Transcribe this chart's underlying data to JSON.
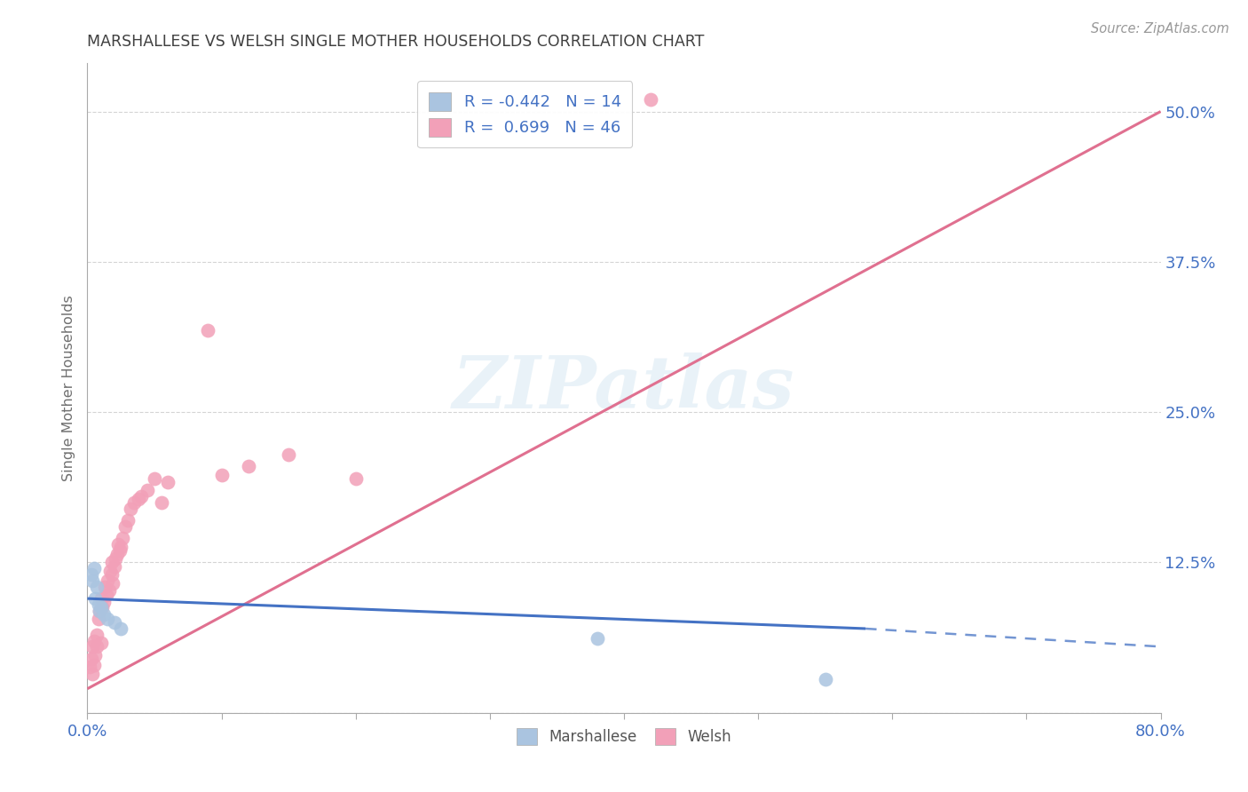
{
  "title": "MARSHALLESE VS WELSH SINGLE MOTHER HOUSEHOLDS CORRELATION CHART",
  "source": "Source: ZipAtlas.com",
  "ylabel": "Single Mother Households",
  "xlim": [
    0.0,
    0.8
  ],
  "ylim": [
    0.0,
    0.54
  ],
  "y_ticks": [
    0.0,
    0.125,
    0.25,
    0.375,
    0.5
  ],
  "y_tick_labels": [
    "",
    "12.5%",
    "25.0%",
    "37.5%",
    "50.0%"
  ],
  "x_ticks": [
    0.0,
    0.1,
    0.2,
    0.3,
    0.4,
    0.5,
    0.6,
    0.7,
    0.8
  ],
  "x_tick_labels": [
    "0.0%",
    "",
    "",
    "",
    "",
    "",
    "",
    "",
    "80.0%"
  ],
  "watermark_text": "ZIPatlas",
  "marshallese_color": "#aac4e0",
  "welsh_color": "#f2a0b8",
  "marshallese_line_color": "#4472c4",
  "welsh_line_color": "#e07090",
  "marshallese_scatter_x": [
    0.003,
    0.004,
    0.005,
    0.006,
    0.007,
    0.008,
    0.009,
    0.01,
    0.012,
    0.015,
    0.02,
    0.025,
    0.38,
    0.55
  ],
  "marshallese_scatter_y": [
    0.115,
    0.11,
    0.12,
    0.095,
    0.105,
    0.09,
    0.085,
    0.088,
    0.082,
    0.078,
    0.075,
    0.07,
    0.062,
    0.028
  ],
  "welsh_scatter_x": [
    0.002,
    0.003,
    0.004,
    0.004,
    0.005,
    0.005,
    0.006,
    0.007,
    0.007,
    0.008,
    0.009,
    0.01,
    0.01,
    0.011,
    0.012,
    0.013,
    0.014,
    0.015,
    0.016,
    0.017,
    0.018,
    0.018,
    0.019,
    0.02,
    0.021,
    0.022,
    0.023,
    0.024,
    0.025,
    0.026,
    0.028,
    0.03,
    0.032,
    0.035,
    0.038,
    0.04,
    0.045,
    0.05,
    0.055,
    0.06,
    0.09,
    0.1,
    0.12,
    0.15,
    0.2,
    0.42
  ],
  "welsh_scatter_y": [
    0.038,
    0.045,
    0.032,
    0.055,
    0.04,
    0.06,
    0.048,
    0.065,
    0.055,
    0.078,
    0.085,
    0.058,
    0.095,
    0.088,
    0.092,
    0.105,
    0.098,
    0.11,
    0.102,
    0.118,
    0.115,
    0.125,
    0.108,
    0.122,
    0.128,
    0.132,
    0.14,
    0.135,
    0.138,
    0.145,
    0.155,
    0.16,
    0.17,
    0.175,
    0.178,
    0.18,
    0.185,
    0.195,
    0.175,
    0.192,
    0.318,
    0.198,
    0.205,
    0.215,
    0.195,
    0.51
  ],
  "background_color": "#ffffff",
  "grid_color": "#d0d0d0",
  "title_color": "#404040",
  "tick_label_color": "#4472c4"
}
